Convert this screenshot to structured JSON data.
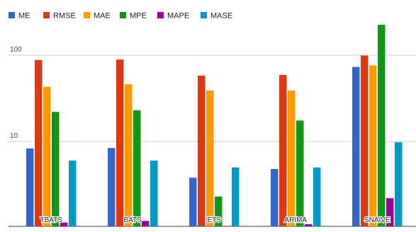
{
  "chart_data": {
    "type": "bar",
    "scale": "log",
    "ylim": [
      1,
      200
    ],
    "grid": true,
    "legend_position": "top-left",
    "y_ticks": [
      {
        "value": 10,
        "label": "10"
      },
      {
        "value": 100,
        "label": "100"
      }
    ],
    "categories": [
      "TBATS",
      "BATS",
      "ETS",
      "ARIMA",
      "SNAIVE"
    ],
    "series": [
      {
        "name": "ME",
        "color": "#3366cc",
        "values": [
          8.3,
          8.4,
          3.8,
          4.8,
          73
        ]
      },
      {
        "name": "RMSE",
        "color": "#dc3912",
        "values": [
          88,
          89,
          58,
          59,
          99
        ]
      },
      {
        "name": "MAE",
        "color": "#ff9900",
        "values": [
          43,
          46,
          39,
          39,
          76
        ]
      },
      {
        "name": "MPE",
        "color": "#109618",
        "values": [
          22,
          23,
          2.3,
          17.5,
          225
        ]
      },
      {
        "name": "MAPE",
        "color": "#990099",
        "values": [
          1.15,
          1.2,
          1.05,
          1.1,
          2.2
        ]
      },
      {
        "name": "MASE",
        "color": "#0099c6",
        "values": [
          6.0,
          6.0,
          5.0,
          5.0,
          9.8
        ]
      }
    ]
  }
}
